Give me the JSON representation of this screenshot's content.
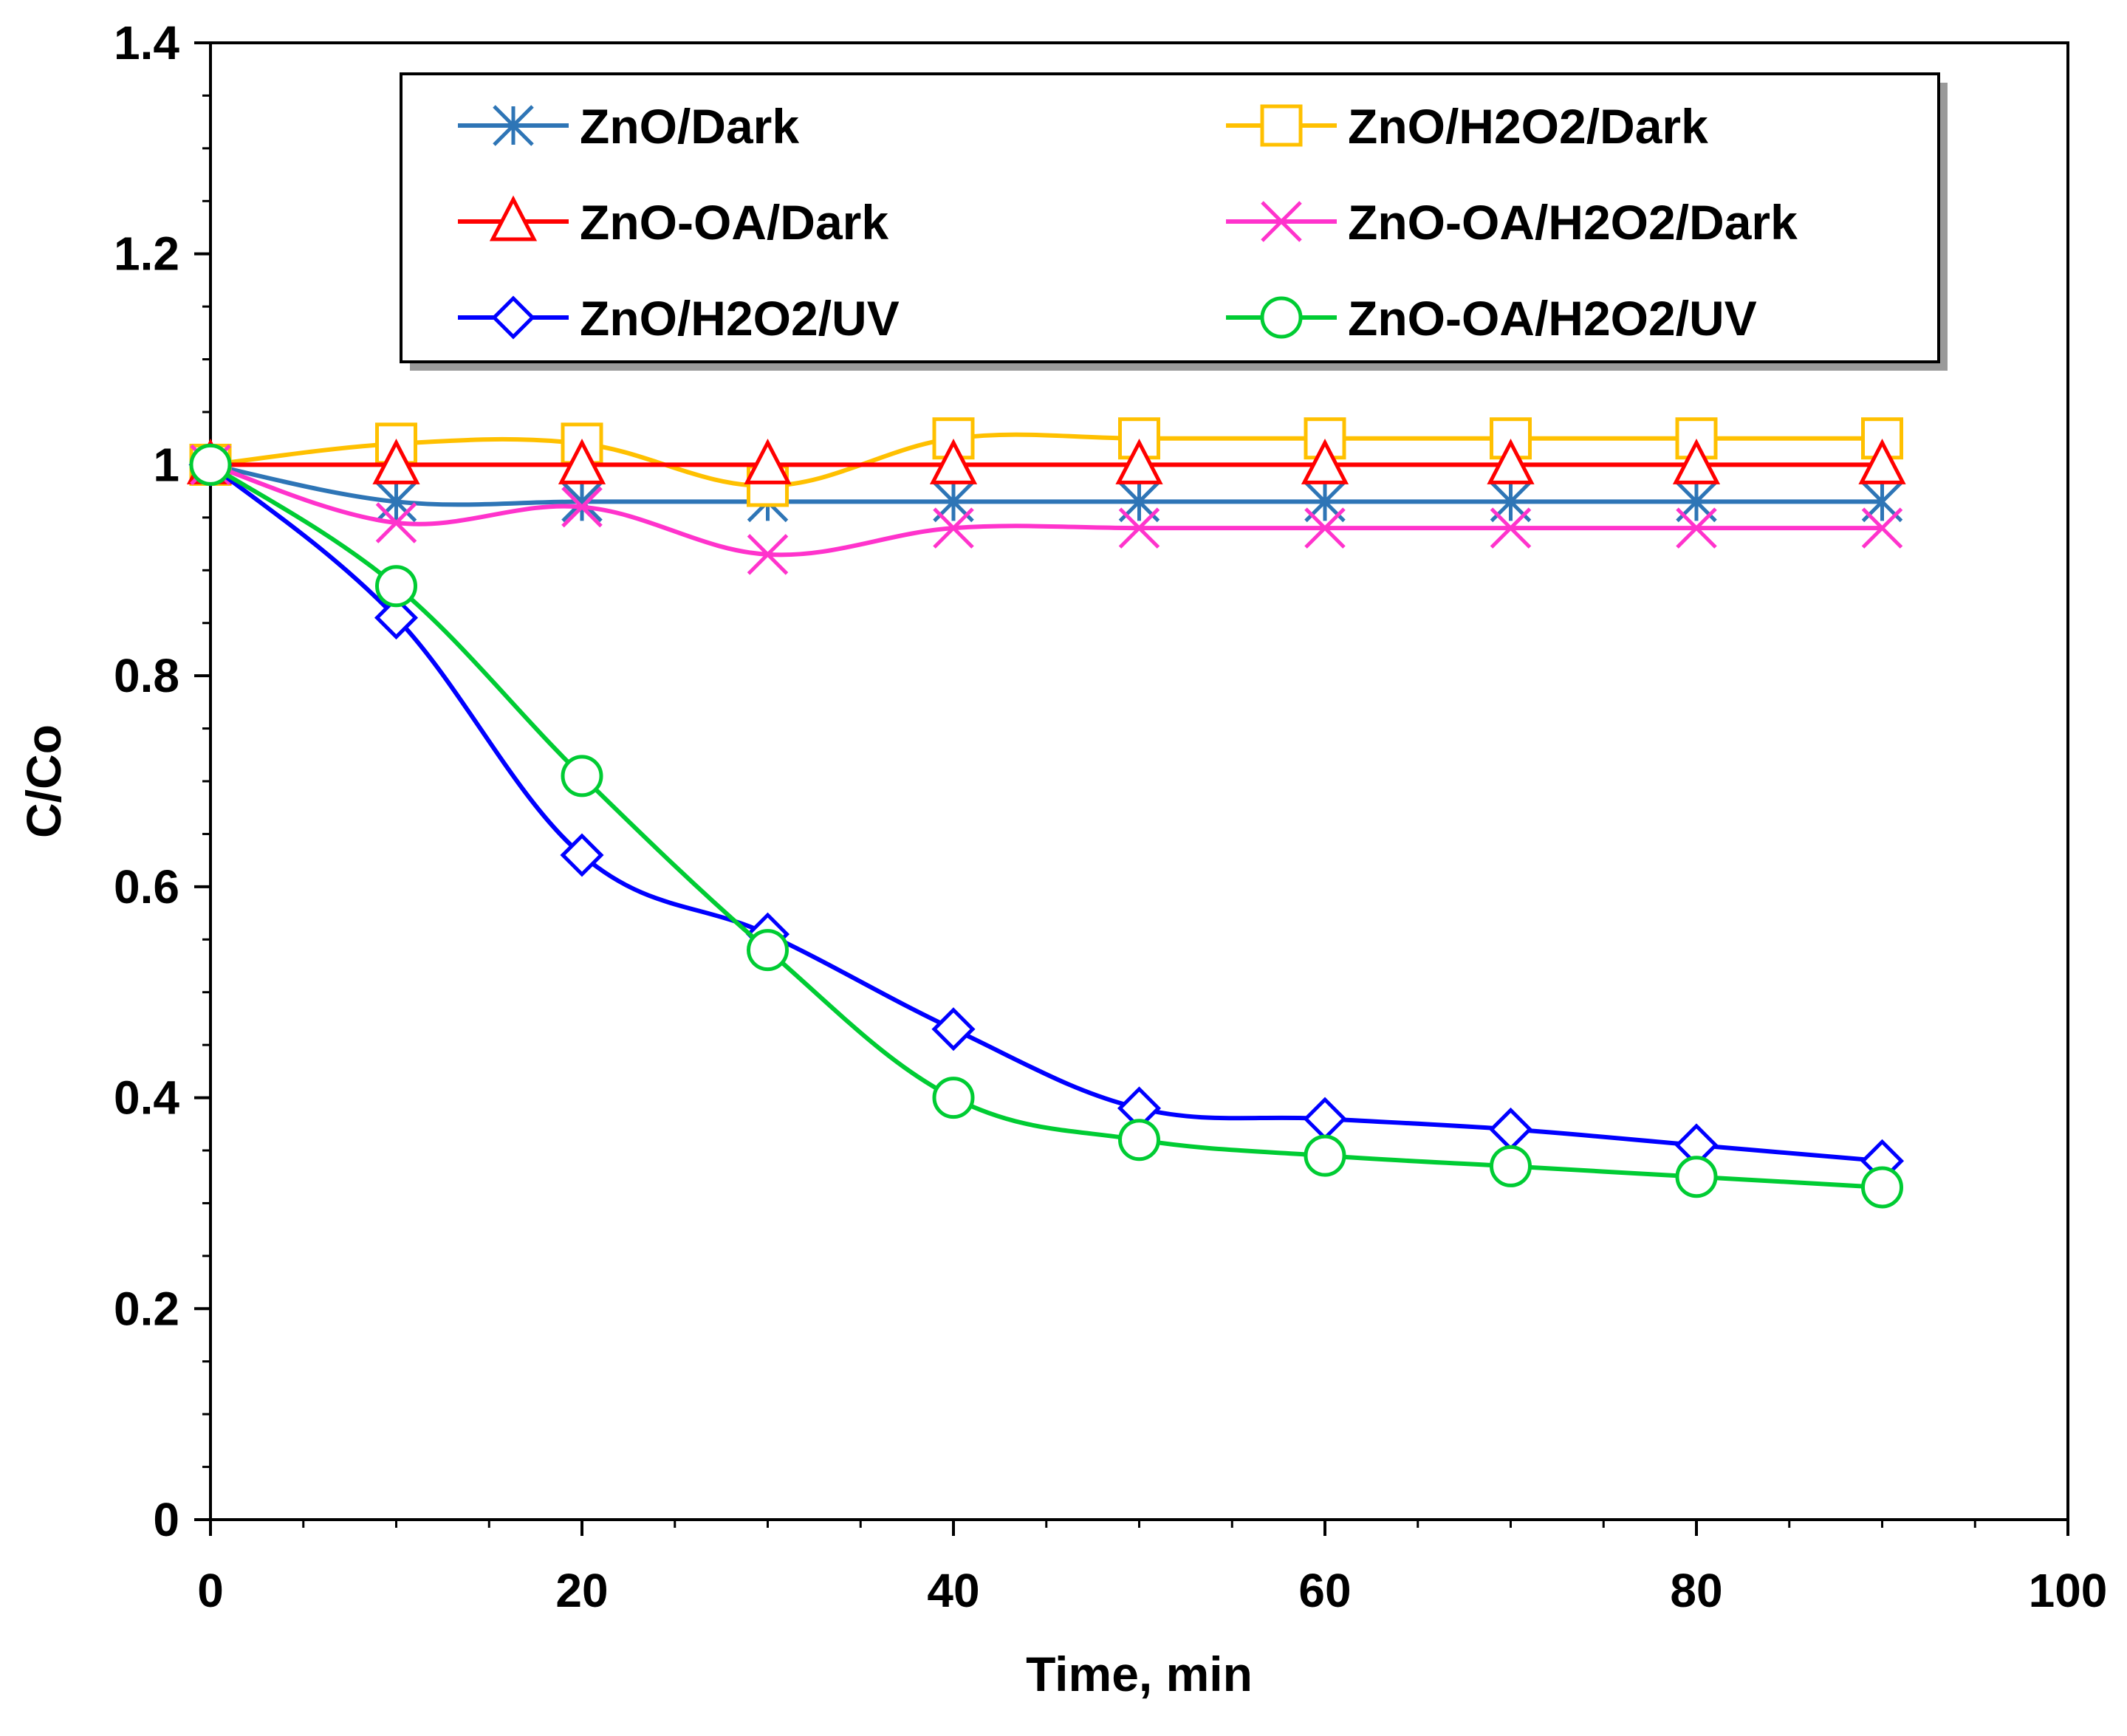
{
  "chart_data": {
    "type": "line",
    "title": "",
    "xlabel": "Time, min",
    "ylabel": "C/Co",
    "xlim": [
      0,
      100
    ],
    "ylim": [
      0,
      1.4
    ],
    "xticks": [
      0,
      20,
      40,
      60,
      80,
      100
    ],
    "xtick_labels": [
      "0",
      "20",
      "40",
      "60",
      "80",
      "100"
    ],
    "yticks": [
      0,
      0.2,
      0.4,
      0.6,
      0.8,
      1,
      1.2,
      1.4
    ],
    "ytick_labels": [
      "0",
      "0.2",
      "0.4",
      "0.6",
      "0.8",
      "1",
      "1.2",
      "1.4"
    ],
    "grid": false,
    "legend_position": "top",
    "x": [
      0,
      10,
      20,
      30,
      40,
      50,
      60,
      70,
      80,
      90
    ],
    "series": [
      {
        "name": "ZnO/Dark",
        "color": "#2E75B6",
        "marker": "asterisk",
        "values": [
          1.0,
          0.965,
          0.965,
          0.965,
          0.965,
          0.965,
          0.965,
          0.965,
          0.965,
          0.965
        ]
      },
      {
        "name": "ZnO/H2O2/Dark",
        "color": "#FFC000",
        "marker": "square",
        "values": [
          1.0,
          1.02,
          1.02,
          0.98,
          1.025,
          1.025,
          1.025,
          1.025,
          1.025,
          1.025
        ]
      },
      {
        "name": "ZnO-OA/Dark",
        "color": "#FF0000",
        "marker": "triangle",
        "values": [
          1.0,
          1.0,
          1.0,
          1.0,
          1.0,
          1.0,
          1.0,
          1.0,
          1.0,
          1.0
        ]
      },
      {
        "name": "ZnO-OA/H2O2/Dark",
        "color": "#FF33CC",
        "marker": "cross",
        "values": [
          1.0,
          0.945,
          0.96,
          0.915,
          0.94,
          0.94,
          0.94,
          0.94,
          0.94,
          0.94
        ]
      },
      {
        "name": "ZnO/H2O2/UV",
        "color": "#0000FF",
        "marker": "diamond",
        "values": [
          1.0,
          0.855,
          0.63,
          0.555,
          0.465,
          0.39,
          0.38,
          0.37,
          0.355,
          0.34
        ]
      },
      {
        "name": "ZnO-OA/H2O2/UV",
        "color": "#00CC33",
        "marker": "circle",
        "values": [
          1.0,
          0.885,
          0.705,
          0.54,
          0.4,
          0.36,
          0.345,
          0.335,
          0.325,
          0.315
        ]
      }
    ]
  }
}
